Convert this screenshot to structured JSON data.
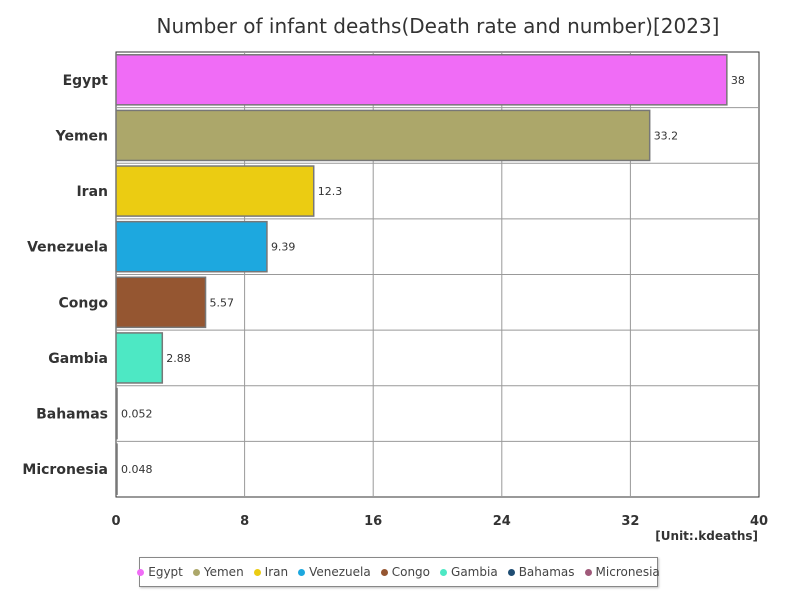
{
  "chart_data": {
    "type": "bar",
    "orientation": "horizontal",
    "title": "Number of infant deaths(Death rate and number)[2023]",
    "unit_label": "[Unit:.kdeaths]",
    "xlim": [
      0,
      40
    ],
    "x_ticks": [
      "0",
      "8",
      "16",
      "24",
      "32",
      "40"
    ],
    "grid": true,
    "legend_placement": "bottom",
    "categories": [
      "Egypt",
      "Yemen",
      "Iran",
      "Venezuela",
      "Congo",
      "Gambia",
      "Bahamas",
      "Micronesia"
    ],
    "values": [
      38,
      33.2,
      12.3,
      9.39,
      5.57,
      2.88,
      0.052,
      0.048
    ],
    "value_labels": [
      "38",
      "33.2",
      "12.3",
      "9.39",
      "5.57",
      "2.88",
      "0.052",
      "0.048"
    ],
    "colors": [
      "#f06cf6",
      "#aca76a",
      "#ebcc12",
      "#1da8df",
      "#955631",
      "#4de8c4",
      "#1f4d73",
      "#a05a7a"
    ]
  }
}
